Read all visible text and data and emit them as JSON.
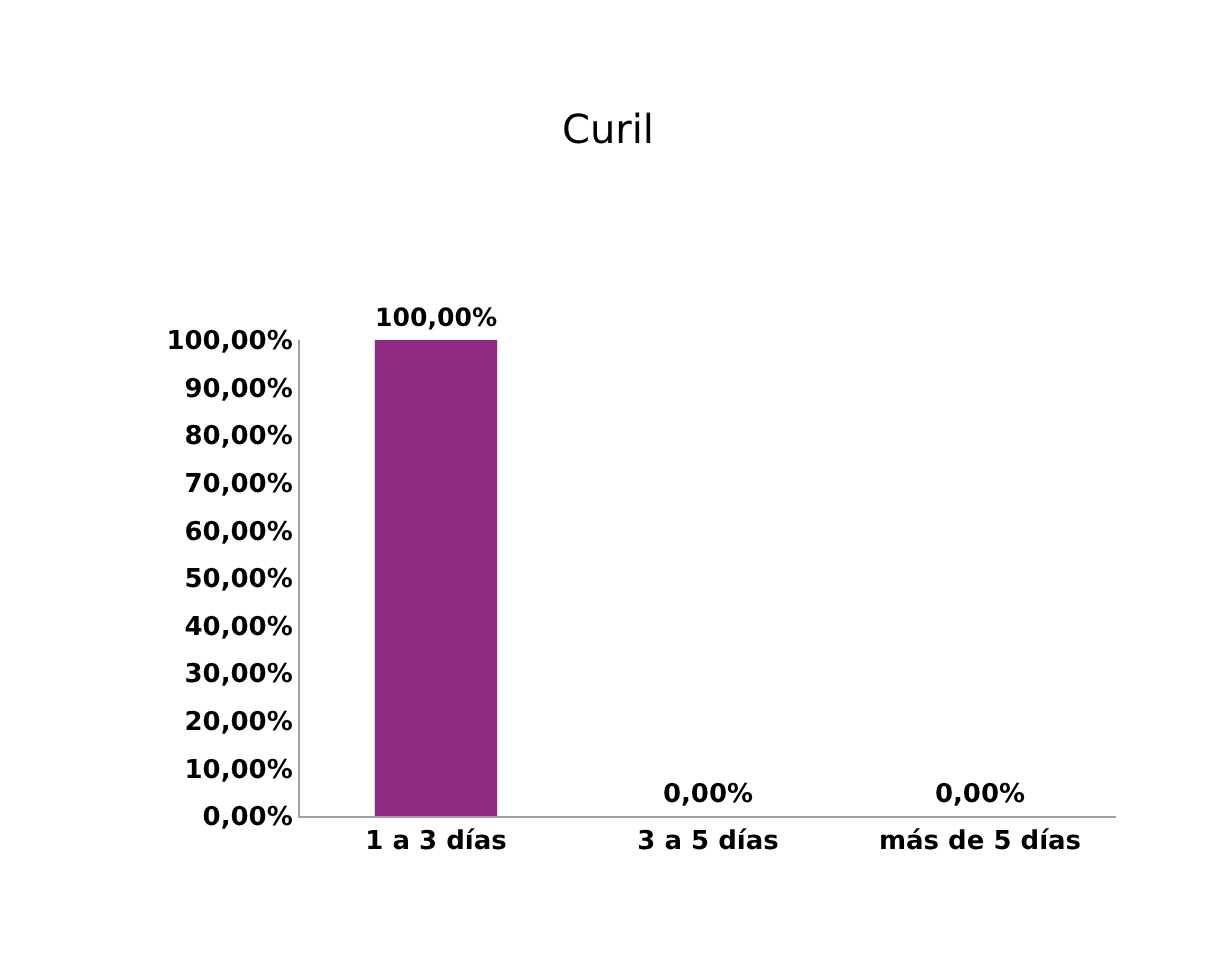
{
  "chart_data": {
    "type": "bar",
    "title": "Curil",
    "categories": [
      "1 a 3 días",
      "3 a 5 días",
      "más de 5 días"
    ],
    "values": [
      100,
      0,
      0
    ],
    "color": "#8e2a82",
    "value_labels": [
      "100,00%",
      "0,00%",
      "0,00%"
    ],
    "ylim": [
      0,
      100
    ],
    "yticks": [
      {
        "value": 0,
        "label": "0,00%"
      },
      {
        "value": 10,
        "label": "10,00%"
      },
      {
        "value": 20,
        "label": "20,00%"
      },
      {
        "value": 30,
        "label": "30,00%"
      },
      {
        "value": 40,
        "label": "40,00%"
      },
      {
        "value": 50,
        "label": "50,00%"
      },
      {
        "value": 60,
        "label": "60,00%"
      },
      {
        "value": 70,
        "label": "70,00%"
      },
      {
        "value": 80,
        "label": "80,00%"
      },
      {
        "value": 90,
        "label": "90,00%"
      },
      {
        "value": 100,
        "label": "100,00%"
      }
    ],
    "grid": false
  }
}
